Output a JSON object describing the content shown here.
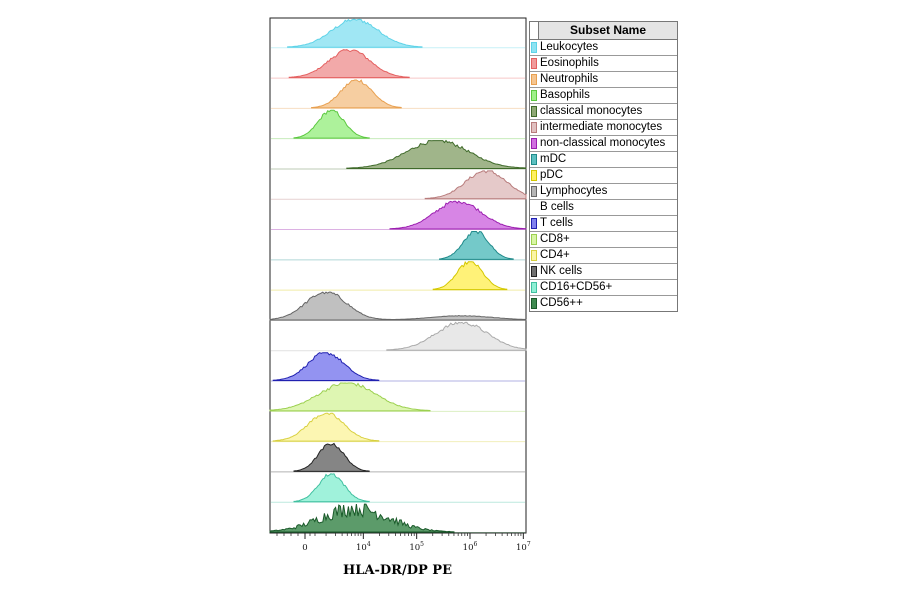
{
  "chart_data": {
    "type": "area",
    "xlabel": "HLA-DR/DP PE",
    "x_scale": "biexponential",
    "x_ticks": [
      {
        "label": "0",
        "value": 0
      },
      {
        "label": "10^4",
        "value": 10000
      },
      {
        "label": "10^5",
        "value": 100000
      },
      {
        "label": "10^6",
        "value": 1000000
      },
      {
        "label": "10^7",
        "value": 10000000
      }
    ],
    "legend_title": "Subset Name",
    "legend_position": "right",
    "series": [
      {
        "name": "Leukocytes",
        "color": "#5fd3e8",
        "fill": "#8fe3f2",
        "peaks": [
          {
            "center": 7000,
            "width": 0.09,
            "weight": 1.0
          }
        ]
      },
      {
        "name": "Eosinophils",
        "color": "#e46060",
        "fill": "#f09a9a",
        "peaks": [
          {
            "center": 5500,
            "width": 0.08,
            "weight": 1.0
          }
        ]
      },
      {
        "name": "Neutrophils",
        "color": "#e8a050",
        "fill": "#f5c590",
        "peaks": [
          {
            "center": 7500,
            "width": 0.06,
            "weight": 1.0
          }
        ]
      },
      {
        "name": "Basophils",
        "color": "#5cc840",
        "fill": "#9ff08a",
        "peaks": [
          {
            "center": 2500,
            "width": 0.05,
            "weight": 1.0
          }
        ]
      },
      {
        "name": "classical monocytes",
        "color": "#3f6a2a",
        "fill": "#8fa875",
        "peaks": [
          {
            "center": 250000,
            "width": 0.12,
            "weight": 1.0
          }
        ]
      },
      {
        "name": "intermediate monocytes",
        "color": "#b87c7c",
        "fill": "#e0c0c0",
        "peaks": [
          {
            "center": 2000000,
            "width": 0.08,
            "weight": 1.0
          }
        ]
      },
      {
        "name": "non-classical monocytes",
        "color": "#9c1fb0",
        "fill": "#d070e0",
        "peaks": [
          {
            "center": 600000,
            "width": 0.09,
            "weight": 1.0
          }
        ]
      },
      {
        "name": "mDC",
        "color": "#1f8a8a",
        "fill": "#5cc0c0",
        "peaks": [
          {
            "center": 1300000,
            "width": 0.05,
            "weight": 1.0
          }
        ]
      },
      {
        "name": "pDC",
        "color": "#d4c800",
        "fill": "#fff060",
        "peaks": [
          {
            "center": 1000000,
            "width": 0.05,
            "weight": 1.0
          }
        ]
      },
      {
        "name": "Lymphocytes",
        "color": "#666666",
        "fill": "#b5b5b5",
        "peaks": [
          {
            "center": 2000,
            "width": 0.08,
            "weight": 1.0
          },
          {
            "center": 700000,
            "width": 0.12,
            "weight": 0.15
          }
        ]
      },
      {
        "name": "B cells",
        "color": "#aaaaaa",
        "fill": "#e4e4e4",
        "peaks": [
          {
            "center": 700000,
            "width": 0.1,
            "weight": 1.0
          }
        ]
      },
      {
        "name": "T cells",
        "color": "#2020b0",
        "fill": "#8080ee",
        "peaks": [
          {
            "center": 2000,
            "width": 0.07,
            "weight": 1.0
          }
        ]
      },
      {
        "name": "CD8+",
        "color": "#9cd050",
        "fill": "#d8f5a5",
        "peaks": [
          {
            "center": 5000,
            "width": 0.11,
            "weight": 1.0
          }
        ]
      },
      {
        "name": "CD4+",
        "color": "#d8d040",
        "fill": "#fbf5a5",
        "peaks": [
          {
            "center": 2000,
            "width": 0.07,
            "weight": 1.0
          }
        ]
      },
      {
        "name": "NK cells",
        "color": "#222222",
        "fill": "#707070",
        "peaks": [
          {
            "center": 2500,
            "width": 0.05,
            "weight": 1.0
          }
        ]
      },
      {
        "name": "CD16+CD56+",
        "color": "#40c0a0",
        "fill": "#8ff0d5",
        "peaks": [
          {
            "center": 2500,
            "width": 0.05,
            "weight": 1.0
          }
        ]
      },
      {
        "name": "CD56++",
        "color": "#1a5a2a",
        "fill": "#3f8a50",
        "peaks": [
          {
            "center": 7000,
            "width": 0.13,
            "weight": 1.0
          }
        ]
      }
    ]
  }
}
